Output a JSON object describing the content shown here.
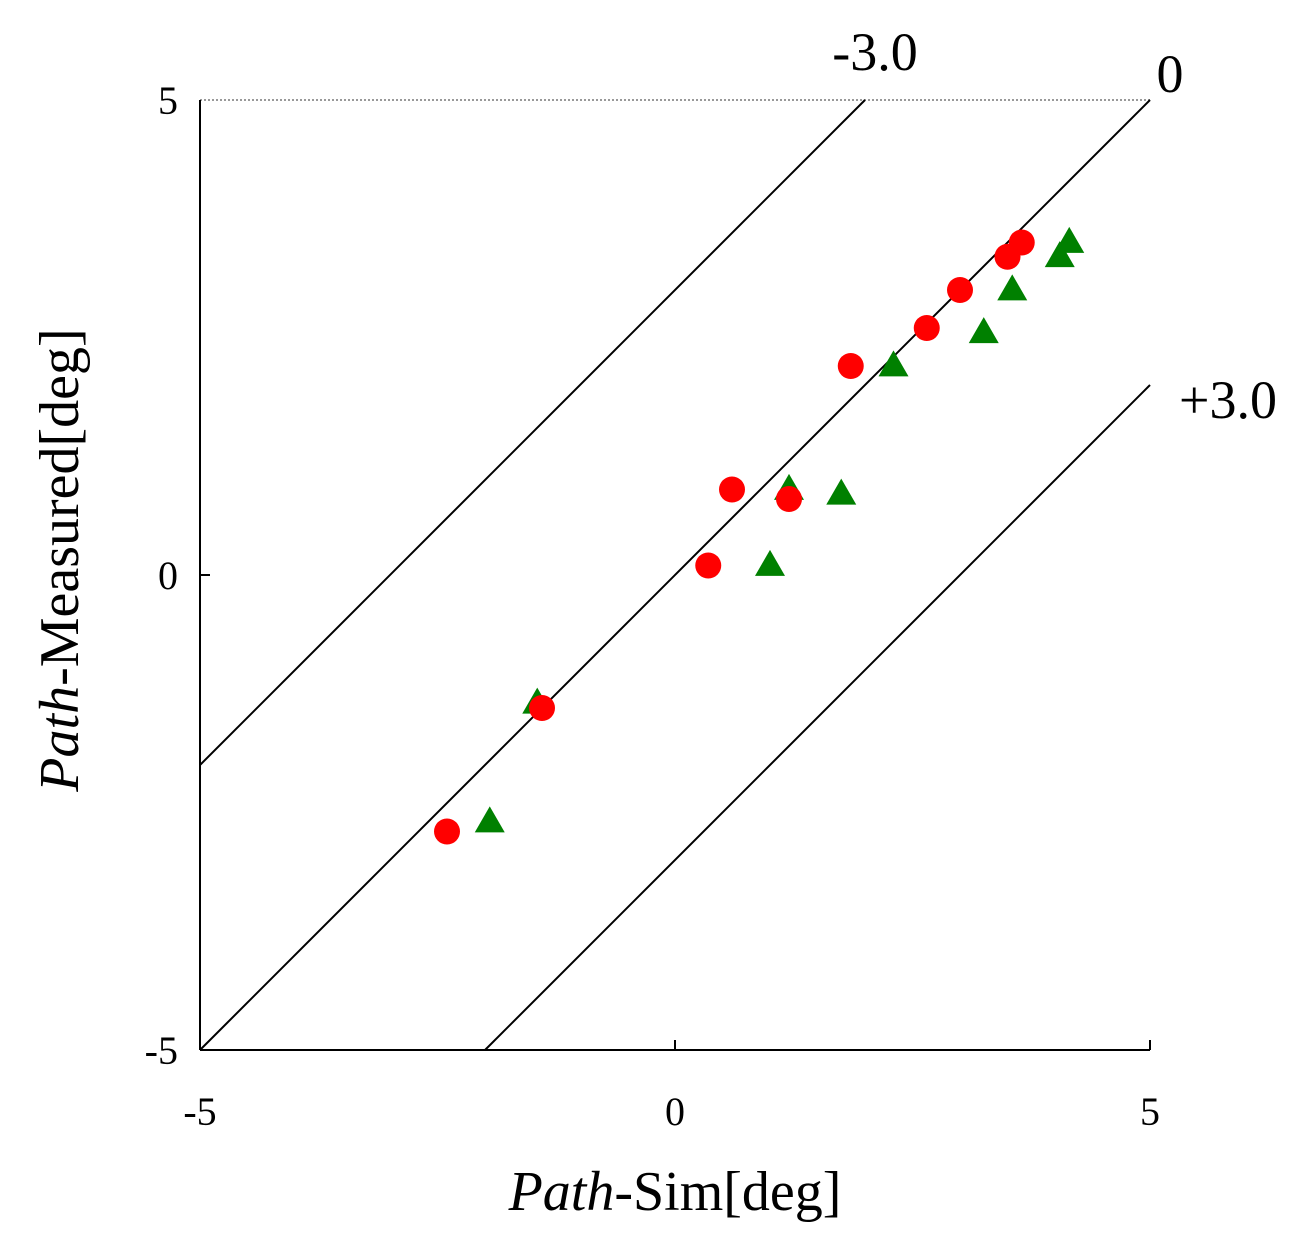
{
  "chart_data": {
    "type": "scatter",
    "title": "",
    "xlabel_italic": "Path",
    "xlabel_rest": "-Sim[deg]",
    "ylabel_italic": "Path",
    "ylabel_rest": "-Measured[deg]",
    "xlim": [
      -5,
      5
    ],
    "ylim": [
      -5,
      5
    ],
    "x_ticks": [
      "-5",
      "0",
      "5"
    ],
    "y_ticks": [
      "-5",
      "0",
      "5"
    ],
    "grid": false,
    "reference_lines": [
      {
        "label": "-3.0",
        "offset": 3.0
      },
      {
        "label": "0",
        "offset": 0.0
      },
      {
        "label": "+3.0",
        "offset": -3.0
      }
    ],
    "series": [
      {
        "name": "circles",
        "marker": "circle",
        "color": "#ff0000",
        "points": [
          {
            "x": -2.4,
            "y": -2.7
          },
          {
            "x": -1.4,
            "y": -1.4
          },
          {
            "x": 0.35,
            "y": 0.1
          },
          {
            "x": 0.6,
            "y": 0.9
          },
          {
            "x": 1.2,
            "y": 0.8
          },
          {
            "x": 1.85,
            "y": 2.2
          },
          {
            "x": 2.65,
            "y": 2.6
          },
          {
            "x": 3.0,
            "y": 3.0
          },
          {
            "x": 3.5,
            "y": 3.35
          },
          {
            "x": 3.65,
            "y": 3.5
          }
        ]
      },
      {
        "name": "triangles",
        "marker": "triangle",
        "color": "#008000",
        "points": [
          {
            "x": -1.45,
            "y": -1.35
          },
          {
            "x": -1.95,
            "y": -2.6
          },
          {
            "x": 1.0,
            "y": 0.1
          },
          {
            "x": 1.2,
            "y": 0.9
          },
          {
            "x": 1.75,
            "y": 0.85
          },
          {
            "x": 2.3,
            "y": 2.2
          },
          {
            "x": 3.25,
            "y": 2.55
          },
          {
            "x": 3.55,
            "y": 3.0
          },
          {
            "x": 4.05,
            "y": 3.35
          },
          {
            "x": 4.15,
            "y": 3.5
          }
        ]
      }
    ]
  }
}
